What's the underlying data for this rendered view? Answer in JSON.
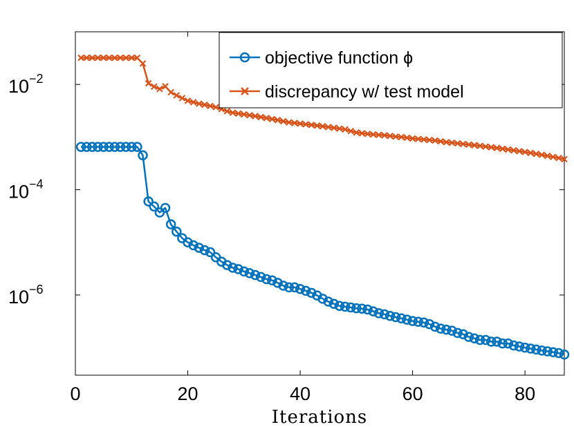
{
  "chart_data": {
    "type": "line",
    "title": "",
    "xlabel": "Iterations",
    "ylabel": "",
    "yscale": "log",
    "xlim": [
      0,
      87
    ],
    "ylim": [
      3e-08,
      0.1
    ],
    "xticks": [
      0,
      20,
      40,
      60,
      80
    ],
    "xtick_labels": [
      "0",
      "20",
      "40",
      "60",
      "80"
    ],
    "yticks": [
      0.01,
      0.0001,
      1e-06
    ],
    "ytick_labels": [
      {
        "base": "10",
        "exp": "−2"
      },
      {
        "base": "10",
        "exp": "−4"
      },
      {
        "base": "10",
        "exp": "−6"
      }
    ],
    "grid": false,
    "legend_position": "top-right",
    "x": [
      1,
      2,
      3,
      4,
      5,
      6,
      7,
      8,
      9,
      10,
      11,
      12,
      13,
      14,
      15,
      16,
      17,
      18,
      19,
      20,
      21,
      22,
      23,
      24,
      25,
      26,
      27,
      28,
      29,
      30,
      31,
      32,
      33,
      34,
      35,
      36,
      37,
      38,
      39,
      40,
      41,
      42,
      43,
      44,
      45,
      46,
      47,
      48,
      49,
      50,
      51,
      52,
      53,
      54,
      55,
      56,
      57,
      58,
      59,
      60,
      61,
      62,
      63,
      64,
      65,
      66,
      67,
      68,
      69,
      70,
      71,
      72,
      73,
      74,
      75,
      76,
      77,
      78,
      79,
      80,
      81,
      82,
      83,
      84,
      85,
      86,
      87
    ],
    "series": [
      {
        "name": "objective function ϕ",
        "color": "#0072bd",
        "marker": "circle",
        "values": [
          0.00065,
          0.00065,
          0.00065,
          0.00065,
          0.00065,
          0.00065,
          0.00065,
          0.00065,
          0.00065,
          0.00065,
          0.00065,
          0.00045,
          6e-05,
          4.8e-05,
          3.7e-05,
          4.5e-05,
          2.2e-05,
          1.6e-05,
          1.2e-05,
          1e-05,
          8.8e-06,
          7.9e-06,
          7.1e-06,
          6.5e-06,
          5.2e-06,
          4.3e-06,
          3.7e-06,
          3.3e-06,
          3.1e-06,
          2.8e-06,
          2.6e-06,
          2.4e-06,
          2.2e-06,
          2e-06,
          1.9e-06,
          1.7e-06,
          1.5e-06,
          1.4e-06,
          1.4e-06,
          1.3e-06,
          1.2e-06,
          1.1e-06,
          9.8e-07,
          8.5e-07,
          7.5e-07,
          6.8e-07,
          6.2e-07,
          6e-07,
          5.8e-07,
          5.6e-07,
          5.5e-07,
          5.3e-07,
          4.9e-07,
          4.5e-07,
          4.3e-07,
          4e-07,
          3.8e-07,
          3.6e-07,
          3.4e-07,
          3.2e-07,
          3.1e-07,
          3e-07,
          2.8e-07,
          2.5e-07,
          2.3e-07,
          2.2e-07,
          2.1e-07,
          1.9e-07,
          1.8e-07,
          1.6e-07,
          1.5e-07,
          1.4e-07,
          1.4e-07,
          1.3e-07,
          1.3e-07,
          1.2e-07,
          1.2e-07,
          1.1e-07,
          1.05e-07,
          1e-07,
          9.6e-08,
          9.2e-08,
          8.8e-08,
          8.5e-08,
          8.2e-08,
          7.9e-08,
          7.4e-08
        ]
      },
      {
        "name": "discrepancy w/ test model",
        "color": "#d95319",
        "marker": "x",
        "values": [
          0.032,
          0.032,
          0.032,
          0.032,
          0.032,
          0.032,
          0.032,
          0.032,
          0.032,
          0.032,
          0.032,
          0.025,
          0.0105,
          0.0091,
          0.0082,
          0.0092,
          0.0071,
          0.0062,
          0.0055,
          0.0049,
          0.0046,
          0.0043,
          0.0041,
          0.0039,
          0.0037,
          0.0034,
          0.0031,
          0.0029,
          0.0028,
          0.0027,
          0.0026,
          0.0025,
          0.0024,
          0.0023,
          0.0022,
          0.0021,
          0.002,
          0.0019,
          0.00185,
          0.0018,
          0.00175,
          0.0017,
          0.00165,
          0.0016,
          0.00155,
          0.0015,
          0.00145,
          0.0014,
          0.0013,
          0.00122,
          0.00118,
          0.00115,
          0.00112,
          0.0011,
          0.00108,
          0.00105,
          0.00102,
          0.001,
          0.00097,
          0.00094,
          0.00092,
          0.0009,
          0.00088,
          0.00086,
          0.00083,
          0.0008,
          0.00078,
          0.00076,
          0.00074,
          0.00072,
          0.0007,
          0.00068,
          0.00066,
          0.00064,
          0.00062,
          0.0006,
          0.00058,
          0.00056,
          0.00054,
          0.00052,
          0.0005,
          0.00048,
          0.00046,
          0.00044,
          0.00042,
          0.0004,
          0.00038
        ]
      }
    ]
  }
}
